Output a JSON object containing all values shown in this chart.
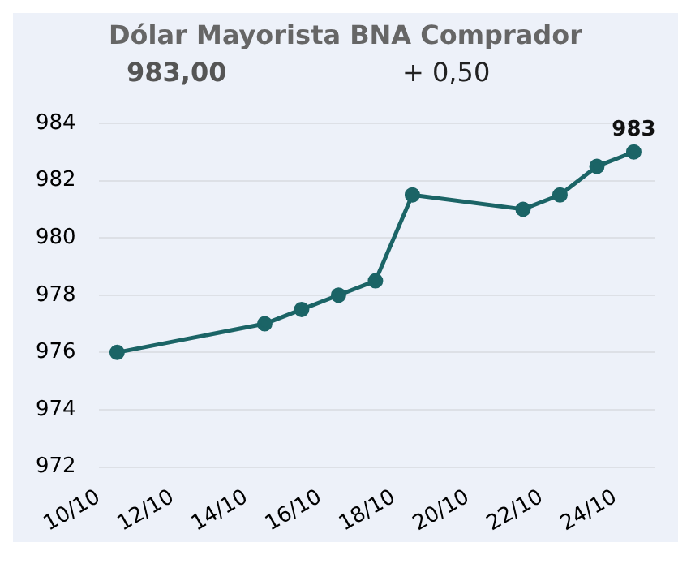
{
  "chart_data": {
    "type": "line",
    "title": "Dólar Mayorista BNA Comprador",
    "annotations": [
      "983,00",
      "+ 0,50"
    ],
    "x": [
      "--10-10T12:00",
      "--10-14T12:00",
      "--10-15T12:00",
      "--10-16T12:00",
      "--10-17T12:00",
      "--10-18T12:00",
      "--10-21T12:00",
      "--10-22T12:00",
      "--10-23T12:00",
      "--10-24T12:00"
    ],
    "series": [
      {
        "color": "#1b6466",
        "values": [
          976,
          977,
          977.5,
          978,
          978.5,
          981.5,
          981,
          981.5,
          982.5,
          983
        ],
        "value_labels": [
          null,
          null,
          null,
          null,
          null,
          null,
          null,
          null,
          null,
          "983"
        ]
      }
    ],
    "xlim": [
      "--10-10",
      "--10-25T02:00"
    ],
    "xticks": [
      {
        "value": "--10-10",
        "label": "10/10"
      },
      {
        "value": "--10-12",
        "label": "12/10"
      },
      {
        "value": "--10-14",
        "label": "14/10"
      },
      {
        "value": "--10-16",
        "label": "16/10"
      },
      {
        "value": "--10-18",
        "label": "18/10"
      },
      {
        "value": "--10-20",
        "label": "20/10"
      },
      {
        "value": "--10-22",
        "label": "22/10"
      },
      {
        "value": "--10-24",
        "label": "24/10"
      }
    ],
    "ylim": [
      972,
      984
    ],
    "yticks": [
      972,
      974,
      976,
      978,
      980,
      982,
      984
    ],
    "grid": "y",
    "marker": "circle",
    "line_style": "solid",
    "legend": false
  }
}
